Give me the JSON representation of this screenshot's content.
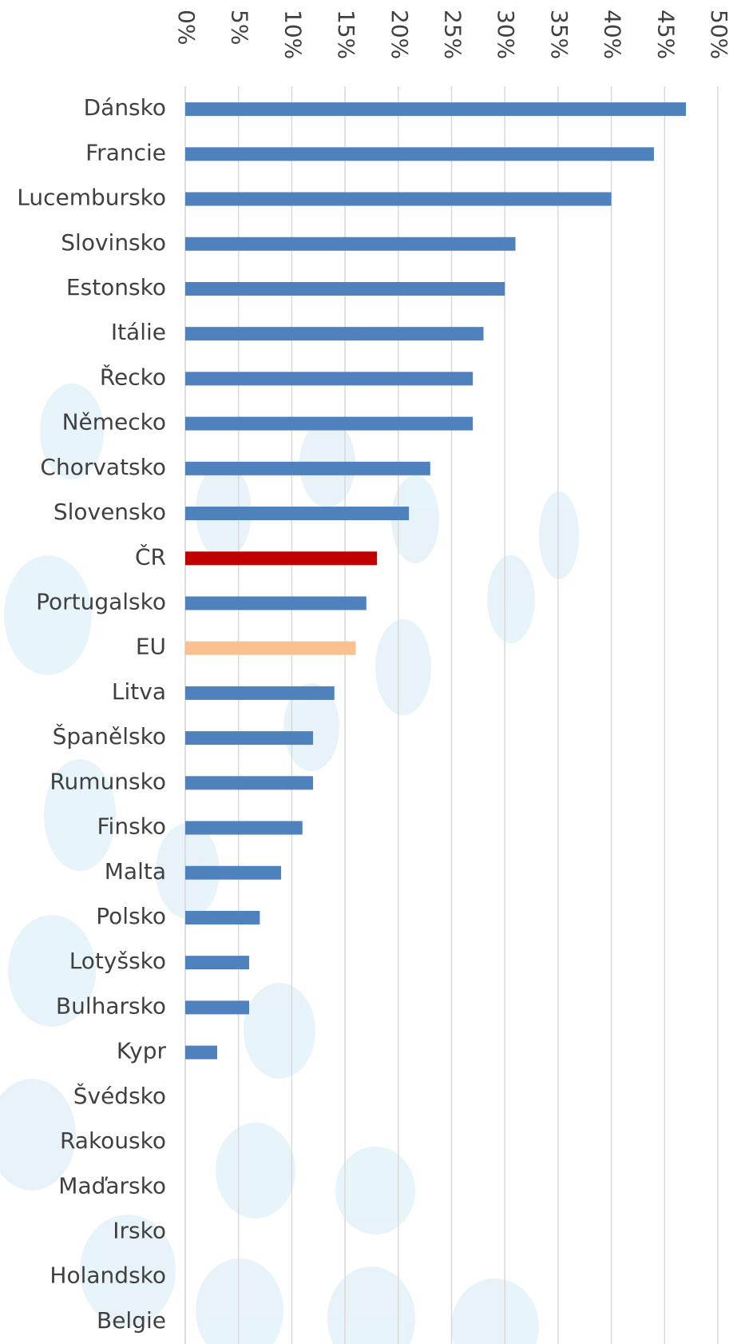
{
  "chart_data": {
    "type": "hbar",
    "categories": [
      "Dánsko",
      "Francie",
      "Lucembursko",
      "Slovinsko",
      "Estonsko",
      "Itálie",
      "Řecko",
      "Německo",
      "Chorvatsko",
      "Slovensko",
      "ČR",
      "Portugalsko",
      "EU",
      "Litva",
      "Španělsko",
      "Rumunsko",
      "Finsko",
      "Malta",
      "Polsko",
      "Lotyšsko",
      "Bulharsko",
      "Kypr",
      "Švédsko",
      "Rakousko",
      "Maďarsko",
      "Irsko",
      "Holandsko",
      "Belgie"
    ],
    "values": [
      47,
      44,
      40,
      31,
      30,
      28,
      27,
      27,
      23,
      21,
      18,
      17,
      16,
      14,
      12,
      12,
      11,
      9,
      7,
      6,
      6,
      3,
      0,
      0,
      0,
      0,
      0,
      0
    ],
    "colors": [
      "#4f81bd",
      "#4f81bd",
      "#4f81bd",
      "#4f81bd",
      "#4f81bd",
      "#4f81bd",
      "#4f81bd",
      "#4f81bd",
      "#4f81bd",
      "#4f81bd",
      "#c00000",
      "#4f81bd",
      "#fac090",
      "#4f81bd",
      "#4f81bd",
      "#4f81bd",
      "#4f81bd",
      "#4f81bd",
      "#4f81bd",
      "#4f81bd",
      "#4f81bd",
      "#4f81bd",
      "#4f81bd",
      "#4f81bd",
      "#4f81bd",
      "#4f81bd",
      "#4f81bd",
      "#4f81bd"
    ],
    "xlim": [
      0,
      50
    ],
    "xticks": [
      {
        "value": 0,
        "label": "0%"
      },
      {
        "value": 5,
        "label": "5%"
      },
      {
        "value": 10,
        "label": "10%"
      },
      {
        "value": 15,
        "label": "15%"
      },
      {
        "value": 20,
        "label": "20%"
      },
      {
        "value": 25,
        "label": "25%"
      },
      {
        "value": 30,
        "label": "30%"
      },
      {
        "value": 35,
        "label": "35%"
      },
      {
        "value": 40,
        "label": "40%"
      },
      {
        "value": 45,
        "label": "45%"
      },
      {
        "value": 50,
        "label": "50%"
      }
    ],
    "grid": true
  }
}
